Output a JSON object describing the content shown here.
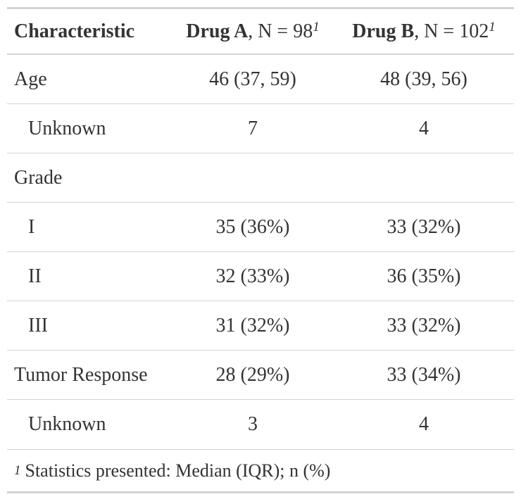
{
  "header": {
    "characteristic": "Characteristic",
    "drug_a_name": "Drug A",
    "drug_a_n": ", N = 98",
    "drug_b_name": "Drug B",
    "drug_b_n": ", N = 102",
    "footnote_mark": "1"
  },
  "rows": [
    {
      "label": "Age",
      "a": "46 (37, 59)",
      "b": "48 (39, 56)"
    },
    {
      "label": "Unknown",
      "a": "7",
      "b": "4"
    },
    {
      "label": "Grade",
      "a": "",
      "b": ""
    },
    {
      "label": "I",
      "a": "35 (36%)",
      "b": "33 (32%)"
    },
    {
      "label": "II",
      "a": "32 (33%)",
      "b": "36 (35%)"
    },
    {
      "label": "III",
      "a": "31 (32%)",
      "b": "33 (32%)"
    },
    {
      "label": "Tumor Response",
      "a": "28 (29%)",
      "b": "33 (34%)"
    },
    {
      "label": "Unknown",
      "a": "3",
      "b": "4"
    }
  ],
  "footnote": {
    "mark": "1",
    "text": "Statistics presented: Median (IQR); n (%)"
  }
}
